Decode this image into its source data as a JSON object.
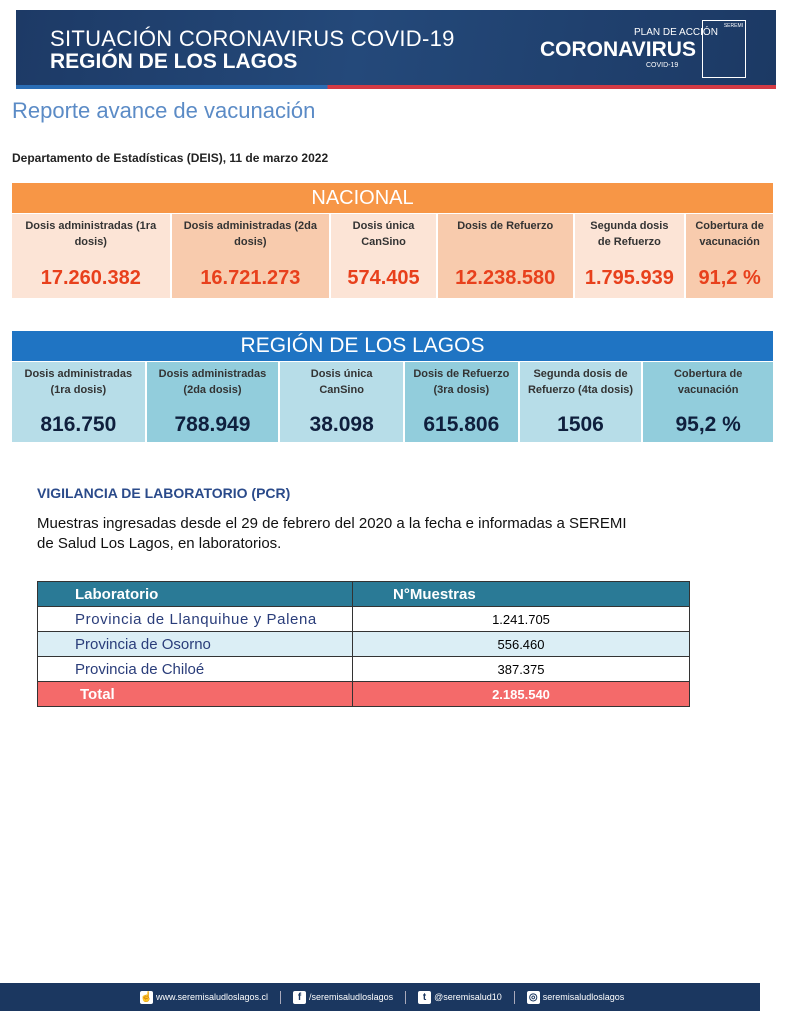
{
  "header": {
    "line1": "SITUACIÓN CORONAVIRUS COVID-19",
    "line2": "REGIÓN DE LOS LAGOS",
    "plan": "PLAN DE ACCIÓN",
    "brand": "CORONAVIRUS",
    "brand_sub": "COVID-19",
    "seremi": "SEREMI"
  },
  "title": "Reporte avance de vacunación",
  "subtitle": "Departamento de Estadísticas (DEIS), 11 de marzo 2022",
  "nacional": {
    "title": "NACIONAL",
    "cells": [
      {
        "label": "Dosis administradas (1ra dosis)",
        "value": "17.260.382"
      },
      {
        "label": "Dosis administradas (2da dosis)",
        "value": "16.721.273"
      },
      {
        "label": "Dosis única CanSino",
        "value": "574.405"
      },
      {
        "label": "Dosis de Refuerzo",
        "value": "12.238.580"
      },
      {
        "label": "Segunda dosis de Refuerzo",
        "value": "1.795.939"
      },
      {
        "label": "Cobertura de vacunación",
        "value": "91,2 %"
      }
    ]
  },
  "region": {
    "title": "REGIÓN DE LOS LAGOS",
    "cells": [
      {
        "label": "Dosis administradas (1ra dosis)",
        "value": "816.750"
      },
      {
        "label": "Dosis administradas (2da dosis)",
        "value": "788.949"
      },
      {
        "label": "Dosis única CanSino",
        "value": "38.098"
      },
      {
        "label": "Dosis de Refuerzo (3ra dosis)",
        "value": "615.806"
      },
      {
        "label": "Segunda dosis de Refuerzo (4ta dosis)",
        "value": "1506"
      },
      {
        "label": "Cobertura de vacunación",
        "value": "95,2 %"
      }
    ]
  },
  "lab": {
    "heading": "VIGILANCIA DE LABORATORIO (PCR)",
    "text": "Muestras ingresadas desde el 29 de febrero del 2020 a la fecha e informadas a SEREMI de Salud Los Lagos, en laboratorios.",
    "columns": [
      "Laboratorio",
      "N°Muestras"
    ],
    "rows": [
      [
        "Provincia de Llanquihue y Palena",
        "1.241.705"
      ],
      [
        "Provincia de Osorno",
        "556.460"
      ],
      [
        "Provincia de Chiloé",
        "387.375"
      ]
    ],
    "total": [
      "Total",
      "2.185.540"
    ]
  },
  "footer": {
    "web": "www.seremisaludloslagos.cl",
    "facebook": "/seremisaludloslagos",
    "twitter": "@seremisalud10",
    "instagram": "seremisaludloslagos"
  }
}
